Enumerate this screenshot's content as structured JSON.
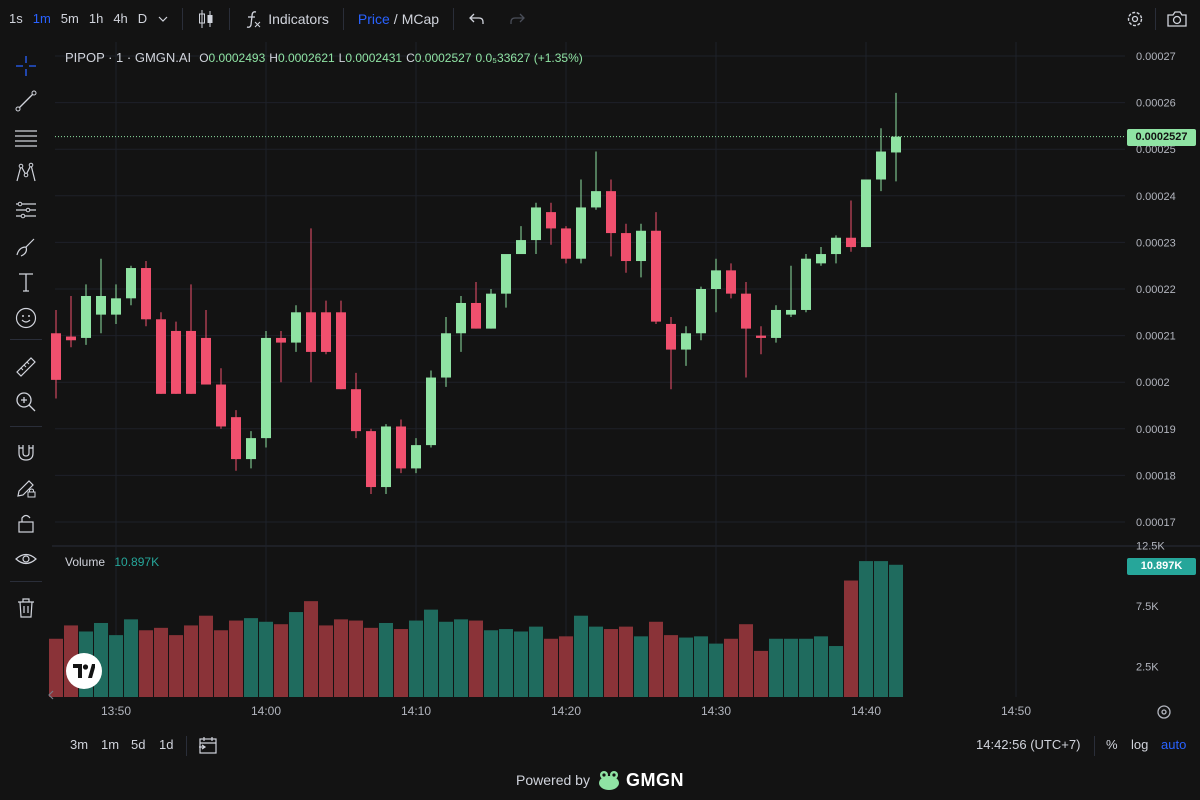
{
  "toolbar": {
    "timeframes": [
      {
        "label": "1s",
        "active": false
      },
      {
        "label": "1m",
        "active": true
      },
      {
        "label": "5m",
        "active": false
      },
      {
        "label": "1h",
        "active": false
      },
      {
        "label": "4h",
        "active": false
      },
      {
        "label": "D",
        "active": false
      }
    ],
    "indicators_label": "Indicators",
    "price_label": "Price",
    "slash": "/",
    "mcap_label": "MCap"
  },
  "legend": {
    "symbol": "PIPOP · 1 · GMGN.AI",
    "open_key": "O",
    "open": "0.0002493",
    "high_key": "H",
    "high": "0.0002621",
    "low_key": "L",
    "low": "0.0002431",
    "close_key": "C",
    "close": "0.0002527",
    "change": "0.0₅33627 (+1.35%)"
  },
  "volume_legend": {
    "label": "Volume",
    "value": "10.897K"
  },
  "price_tag": "0.0002527",
  "volume_tag": "10.897K",
  "colors": {
    "up": "#8fe3a3",
    "down": "#f0506e",
    "vol_up": "#1f6b5e",
    "vol_down": "#8a3338",
    "accent": "#2962ff"
  },
  "chart_data": {
    "type": "candlestick",
    "price_axis_ticks": [
      "0.00027",
      "0.00026",
      "0.00025",
      "0.00024",
      "0.00023",
      "0.00022",
      "0.00021",
      "0.0002",
      "0.00019",
      "0.00018",
      "0.00017"
    ],
    "price_axis_values": [
      0.00027,
      0.00026,
      0.00025,
      0.00024,
      0.00023,
      0.00022,
      0.00021,
      0.0002,
      0.00019,
      0.00018,
      0.00017
    ],
    "volume_axis_ticks": [
      "12.5K",
      "7.5K",
      "2.5K"
    ],
    "volume_axis_values": [
      12500,
      7500,
      2500
    ],
    "time_axis_ticks": [
      "13:50",
      "14:00",
      "14:10",
      "14:20",
      "14:30",
      "14:40",
      "14:50"
    ],
    "time_axis_minutes": [
      0,
      10,
      20,
      30,
      40,
      50,
      60
    ],
    "candles": [
      {
        "m": -4,
        "o": 0.0002105,
        "h": 0.0002155,
        "l": 0.0001965,
        "c": 0.0002005,
        "v": 4800
      },
      {
        "m": -3,
        "o": 0.0002098,
        "h": 0.0002185,
        "l": 0.0002075,
        "c": 0.000209,
        "v": 5900
      },
      {
        "m": -2,
        "o": 0.0002095,
        "h": 0.000221,
        "l": 0.000208,
        "c": 0.0002185,
        "v": 5400
      },
      {
        "m": -1,
        "o": 0.0002145,
        "h": 0.0002265,
        "l": 0.0002105,
        "c": 0.0002185,
        "v": 6100
      },
      {
        "m": 0,
        "o": 0.0002145,
        "h": 0.000221,
        "l": 0.0002125,
        "c": 0.000218,
        "v": 5100
      },
      {
        "m": 1,
        "o": 0.000218,
        "h": 0.000225,
        "l": 0.0002165,
        "c": 0.0002245,
        "v": 6400
      },
      {
        "m": 2,
        "o": 0.0002245,
        "h": 0.000226,
        "l": 0.000212,
        "c": 0.0002135,
        "v": 5500
      },
      {
        "m": 3,
        "o": 0.0002135,
        "h": 0.000215,
        "l": 0.0001975,
        "c": 0.0001975,
        "v": 5700
      },
      {
        "m": 4,
        "o": 0.000211,
        "h": 0.000213,
        "l": 0.0001975,
        "c": 0.0001975,
        "v": 5100
      },
      {
        "m": 5,
        "o": 0.000211,
        "h": 0.000221,
        "l": 0.0001975,
        "c": 0.0001975,
        "v": 5900
      },
      {
        "m": 6,
        "o": 0.0002095,
        "h": 0.0002155,
        "l": 0.0001995,
        "c": 0.0001995,
        "v": 6700
      },
      {
        "m": 7,
        "o": 0.0001995,
        "h": 0.000203,
        "l": 0.00019,
        "c": 0.0001905,
        "v": 5500
      },
      {
        "m": 8,
        "o": 0.0001925,
        "h": 0.000194,
        "l": 0.000181,
        "c": 0.0001835,
        "v": 6300
      },
      {
        "m": 9,
        "o": 0.0001835,
        "h": 0.0001895,
        "l": 0.0001815,
        "c": 0.000188,
        "v": 6500
      },
      {
        "m": 10,
        "o": 0.000188,
        "h": 0.000211,
        "l": 0.000186,
        "c": 0.0002095,
        "v": 6200
      },
      {
        "m": 11,
        "o": 0.0002095,
        "h": 0.000211,
        "l": 0.0002,
        "c": 0.0002085,
        "v": 6000
      },
      {
        "m": 12,
        "o": 0.0002085,
        "h": 0.0002165,
        "l": 0.0002065,
        "c": 0.000215,
        "v": 7000
      },
      {
        "m": 13,
        "o": 0.000215,
        "h": 0.000233,
        "l": 0.0002,
        "c": 0.0002065,
        "v": 7900
      },
      {
        "m": 14,
        "o": 0.000215,
        "h": 0.0002175,
        "l": 0.000206,
        "c": 0.0002065,
        "v": 5900
      },
      {
        "m": 15,
        "o": 0.000215,
        "h": 0.0002175,
        "l": 0.0001985,
        "c": 0.0001985,
        "v": 6400
      },
      {
        "m": 16,
        "o": 0.0001985,
        "h": 0.000202,
        "l": 0.000188,
        "c": 0.0001895,
        "v": 6300
      },
      {
        "m": 17,
        "o": 0.0001895,
        "h": 0.00019,
        "l": 0.000176,
        "c": 0.0001775,
        "v": 5700
      },
      {
        "m": 18,
        "o": 0.0001775,
        "h": 0.000191,
        "l": 0.000176,
        "c": 0.0001905,
        "v": 6100
      },
      {
        "m": 19,
        "o": 0.0001905,
        "h": 0.000192,
        "l": 0.0001805,
        "c": 0.0001815,
        "v": 5600
      },
      {
        "m": 20,
        "o": 0.0001815,
        "h": 0.000188,
        "l": 0.0001805,
        "c": 0.0001865,
        "v": 6300
      },
      {
        "m": 21,
        "o": 0.0001865,
        "h": 0.0002025,
        "l": 0.000186,
        "c": 0.000201,
        "v": 7200
      },
      {
        "m": 22,
        "o": 0.000201,
        "h": 0.000214,
        "l": 0.000199,
        "c": 0.0002105,
        "v": 6200
      },
      {
        "m": 23,
        "o": 0.0002105,
        "h": 0.0002185,
        "l": 0.0002065,
        "c": 0.000217,
        "v": 6400
      },
      {
        "m": 24,
        "o": 0.000217,
        "h": 0.0002215,
        "l": 0.0002115,
        "c": 0.0002115,
        "v": 6300
      },
      {
        "m": 25,
        "o": 0.0002115,
        "h": 0.00022,
        "l": 0.0002115,
        "c": 0.000219,
        "v": 5500
      },
      {
        "m": 26,
        "o": 0.000219,
        "h": 0.000227,
        "l": 0.000216,
        "c": 0.0002275,
        "v": 5600
      },
      {
        "m": 27,
        "o": 0.0002275,
        "h": 0.0002335,
        "l": 0.0002275,
        "c": 0.0002305,
        "v": 5400
      },
      {
        "m": 28,
        "o": 0.0002305,
        "h": 0.0002385,
        "l": 0.0002275,
        "c": 0.0002375,
        "v": 5800
      },
      {
        "m": 29,
        "o": 0.0002365,
        "h": 0.0002385,
        "l": 0.0002295,
        "c": 0.000233,
        "v": 4800
      },
      {
        "m": 30,
        "o": 0.000233,
        "h": 0.0002335,
        "l": 0.0002255,
        "c": 0.0002265,
        "v": 5000
      },
      {
        "m": 31,
        "o": 0.0002265,
        "h": 0.0002435,
        "l": 0.0002255,
        "c": 0.0002375,
        "v": 6700
      },
      {
        "m": 32,
        "o": 0.0002375,
        "h": 0.0002495,
        "l": 0.000237,
        "c": 0.000241,
        "v": 5800
      },
      {
        "m": 33,
        "o": 0.000241,
        "h": 0.0002435,
        "l": 0.000227,
        "c": 0.000232,
        "v": 5600
      },
      {
        "m": 34,
        "o": 0.000232,
        "h": 0.000234,
        "l": 0.0002235,
        "c": 0.000226,
        "v": 5800
      },
      {
        "m": 35,
        "o": 0.000226,
        "h": 0.000234,
        "l": 0.0002225,
        "c": 0.0002325,
        "v": 5000
      },
      {
        "m": 36,
        "o": 0.0002325,
        "h": 0.0002365,
        "l": 0.0002125,
        "c": 0.000213,
        "v": 6200
      },
      {
        "m": 37,
        "o": 0.0002125,
        "h": 0.000214,
        "l": 0.0001985,
        "c": 0.000207,
        "v": 5100
      },
      {
        "m": 38,
        "o": 0.000207,
        "h": 0.000212,
        "l": 0.0002035,
        "c": 0.0002105,
        "v": 4900
      },
      {
        "m": 39,
        "o": 0.0002105,
        "h": 0.0002205,
        "l": 0.000209,
        "c": 0.00022,
        "v": 5000
      },
      {
        "m": 40,
        "o": 0.00022,
        "h": 0.0002265,
        "l": 0.000215,
        "c": 0.000224,
        "v": 4400
      },
      {
        "m": 41,
        "o": 0.000224,
        "h": 0.0002255,
        "l": 0.000218,
        "c": 0.000219,
        "v": 4800
      },
      {
        "m": 42,
        "o": 0.000219,
        "h": 0.0002215,
        "l": 0.000201,
        "c": 0.0002115,
        "v": 6000
      },
      {
        "m": 43,
        "o": 0.00021,
        "h": 0.000212,
        "l": 0.000206,
        "c": 0.0002095,
        "v": 3800
      },
      {
        "m": 44,
        "o": 0.0002095,
        "h": 0.0002165,
        "l": 0.0002085,
        "c": 0.0002155,
        "v": 4800
      },
      {
        "m": 45,
        "o": 0.0002145,
        "h": 0.000225,
        "l": 0.000214,
        "c": 0.0002155,
        "v": 4800
      },
      {
        "m": 46,
        "o": 0.0002155,
        "h": 0.0002275,
        "l": 0.000215,
        "c": 0.0002265,
        "v": 4800
      },
      {
        "m": 47,
        "o": 0.0002255,
        "h": 0.000229,
        "l": 0.000225,
        "c": 0.0002275,
        "v": 5000
      },
      {
        "m": 48,
        "o": 0.0002275,
        "h": 0.0002315,
        "l": 0.0002255,
        "c": 0.000231,
        "v": 4200
      },
      {
        "m": 49,
        "o": 0.000231,
        "h": 0.000239,
        "l": 0.000228,
        "c": 0.000229,
        "v": 9600
      },
      {
        "m": 50,
        "o": 0.000229,
        "h": 0.0002435,
        "l": 0.000229,
        "c": 0.0002435,
        "v": 11200
      },
      {
        "m": 51,
        "o": 0.0002435,
        "h": 0.0002545,
        "l": 0.000241,
        "c": 0.0002495,
        "v": 11200
      },
      {
        "m": 52,
        "o": 0.0002493,
        "h": 0.0002621,
        "l": 0.0002431,
        "c": 0.0002527,
        "v": 10897
      }
    ]
  }
}
